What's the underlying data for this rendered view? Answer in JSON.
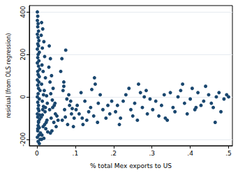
{
  "chart_data": {
    "type": "scatter",
    "xlabel": "% total Mex exports to US",
    "ylabel": "residual (from OLS regression)",
    "color": "#1a476f",
    "marker": "circle",
    "grid": true,
    "xlim": [
      -0.02,
      0.51
    ],
    "ylim": [
      -230,
      430
    ],
    "xticks": [
      0,
      {
        "value": 0.1,
        "label": ".1"
      },
      {
        "value": 0.2,
        "label": ".2"
      },
      {
        "value": 0.3,
        "label": ".3"
      },
      {
        "value": 0.4,
        "label": ".4"
      },
      {
        "value": 0.5,
        "label": ".5"
      }
    ],
    "yticks": [
      -200,
      0,
      200,
      400
    ],
    "x": [
      0.001,
      0.002,
      0.001,
      0.003,
      0.002,
      0.004,
      0.001,
      0.003,
      0.005,
      0.002,
      0.004,
      0.001,
      0.006,
      0.003,
      0.002,
      0.005,
      0.001,
      0.004,
      0.007,
      0.002,
      0.003,
      0.006,
      0.001,
      0.005,
      0.002,
      0.004,
      0.008,
      0.003,
      0.001,
      0.006,
      0.002,
      0.004,
      0.003,
      0.005,
      0.001,
      0.002,
      0.007,
      0.004,
      0.003,
      0.006,
      0.002,
      0.009,
      0.005,
      0.001,
      0.008,
      0.003,
      0.006,
      0.002,
      0.004,
      0.007,
      0.012,
      0.015,
      0.011,
      0.018,
      0.014,
      0.02,
      0.013,
      0.016,
      0.022,
      0.012,
      0.019,
      0.025,
      0.014,
      0.017,
      0.021,
      0.011,
      0.024,
      0.016,
      0.028,
      0.013,
      0.018,
      0.026,
      0.015,
      0.023,
      0.012,
      0.02,
      0.027,
      0.017,
      0.014,
      0.022,
      0.032,
      0.035,
      0.031,
      0.038,
      0.034,
      0.042,
      0.036,
      0.04,
      0.045,
      0.033,
      0.048,
      0.037,
      0.044,
      0.05,
      0.039,
      0.052,
      0.041,
      0.055,
      0.035,
      0.047,
      0.065,
      0.075,
      0.062,
      0.07,
      0.068,
      0.078,
      0.085,
      0.072,
      0.09,
      0.066,
      0.08,
      0.095,
      0.074,
      0.088,
      0.083,
      0.092,
      0.097,
      0.07,
      0.102,
      0.11,
      0.105,
      0.118,
      0.125,
      0.13,
      0.115,
      0.14,
      0.148,
      0.15,
      0.152,
      0.16,
      0.135,
      0.165,
      0.172,
      0.18,
      0.158,
      0.185,
      0.19,
      0.195,
      0.12,
      0.143,
      0.205,
      0.21,
      0.218,
      0.225,
      0.232,
      0.24,
      0.245,
      0.25,
      0.255,
      0.262,
      0.27,
      0.275,
      0.28,
      0.288,
      0.295,
      0.215,
      0.265,
      0.285,
      0.302,
      0.31,
      0.318,
      0.325,
      0.332,
      0.34,
      0.348,
      0.355,
      0.36,
      0.368,
      0.375,
      0.38,
      0.385,
      0.392,
      0.4,
      0.405,
      0.412,
      0.42,
      0.428,
      0.435,
      0.44,
      0.448,
      0.455,
      0.46,
      0.468,
      0.475,
      0.48,
      0.488,
      0.495,
      0.5,
      0.335,
      0.415,
      0.465
    ],
    "values": [
      400,
      380,
      360,
      345,
      330,
      310,
      295,
      280,
      265,
      250,
      240,
      225,
      210,
      200,
      185,
      170,
      160,
      145,
      130,
      120,
      105,
      95,
      80,
      70,
      55,
      40,
      30,
      15,
      0,
      -10,
      -25,
      -40,
      -55,
      -65,
      -80,
      -95,
      -105,
      -120,
      -135,
      -145,
      -160,
      -170,
      -180,
      -190,
      -200,
      -210,
      -220,
      -150,
      -115,
      -85,
      350,
      320,
      290,
      260,
      230,
      190,
      150,
      120,
      90,
      60,
      30,
      5,
      -20,
      -45,
      -70,
      -95,
      -120,
      -140,
      -165,
      -180,
      -195,
      -110,
      -60,
      -150,
      -200,
      -130,
      -30,
      10,
      -85,
      -50,
      240,
      180,
      140,
      100,
      70,
      40,
      15,
      -15,
      -40,
      -60,
      -80,
      -100,
      -120,
      -140,
      -160,
      -90,
      -50,
      -110,
      -170,
      -30,
      180,
      220,
      120,
      70,
      30,
      -10,
      -40,
      -60,
      -80,
      -110,
      -130,
      -140,
      -95,
      -20,
      10,
      -55,
      -100,
      50,
      -60,
      -80,
      -40,
      -100,
      -20,
      -110,
      20,
      -50,
      -90,
      90,
      60,
      -30,
      -70,
      10,
      -60,
      -100,
      -120,
      -40,
      -80,
      -20,
      -130,
      35,
      -70,
      -40,
      -100,
      -20,
      10,
      40,
      -60,
      -90,
      -30,
      -110,
      20,
      -50,
      0,
      -80,
      -10,
      -130,
      60,
      30,
      -60,
      -20,
      -90,
      -40,
      10,
      -110,
      20,
      -50,
      -70,
      0,
      30,
      60,
      -30,
      -80,
      -10,
      40,
      -60,
      20,
      -40,
      -20,
      50,
      10,
      -30,
      -50,
      0,
      20,
      -70,
      -10,
      10,
      0,
      -100,
      -50,
      -120
    ]
  }
}
